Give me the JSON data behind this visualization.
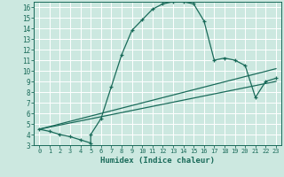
{
  "xlabel": "Humidex (Indice chaleur)",
  "bg_color": "#cce8e0",
  "grid_color": "#ffffff",
  "line_color": "#1a6b5a",
  "xlim": [
    -0.5,
    23.5
  ],
  "ylim": [
    3,
    16.5
  ],
  "x_ticks": [
    0,
    1,
    2,
    3,
    4,
    5,
    6,
    7,
    8,
    9,
    10,
    11,
    12,
    13,
    14,
    15,
    16,
    17,
    18,
    19,
    20,
    21,
    22,
    23
  ],
  "y_ticks": [
    3,
    4,
    5,
    6,
    7,
    8,
    9,
    10,
    11,
    12,
    13,
    14,
    15,
    16
  ],
  "curve_x": [
    0,
    1,
    2,
    3,
    4,
    5,
    5,
    6,
    7,
    8,
    9,
    10,
    11,
    12,
    13,
    14,
    15,
    16,
    17,
    18,
    19,
    20,
    21,
    22,
    23
  ],
  "curve_y": [
    4.5,
    4.3,
    4.0,
    3.8,
    3.5,
    3.2,
    4.0,
    5.5,
    8.5,
    11.5,
    13.8,
    14.8,
    15.8,
    16.3,
    16.5,
    16.5,
    16.3,
    14.7,
    11.0,
    11.2,
    11.0,
    10.5,
    7.5,
    9.0,
    9.3
  ],
  "line1_x": [
    0,
    23
  ],
  "line1_y": [
    4.5,
    9.0
  ],
  "line2_x": [
    0,
    23
  ],
  "line2_y": [
    4.5,
    10.2
  ]
}
